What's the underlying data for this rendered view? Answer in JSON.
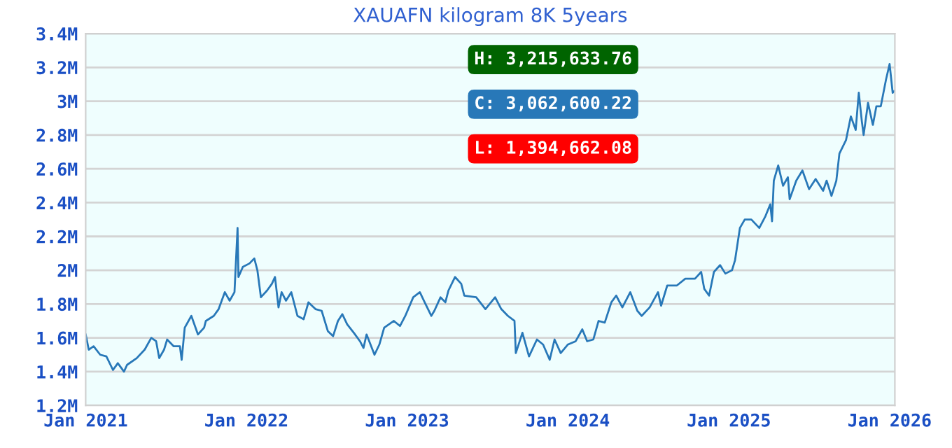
{
  "chart_data": {
    "type": "line",
    "title": "XAUAFN kilogram 8K 5years",
    "annotations": [
      "H: 3,215,633.76",
      "C: 3,062,600.22",
      "L: 1,394,662.08"
    ],
    "series": [
      {
        "color": "#2878b8",
        "x": [
          "2021-01-01",
          "2021-01-08",
          "2021-01-19",
          "2021-02-03",
          "2021-02-17",
          "2021-03-04",
          "2021-03-15",
          "2021-03-29",
          "2021-04-05",
          "2021-04-27",
          "2021-05-15",
          "2021-05-30",
          "2021-06-10",
          "2021-06-17",
          "2021-06-28",
          "2021-07-05",
          "2021-07-20",
          "2021-08-03",
          "2021-08-07",
          "2021-08-14",
          "2021-08-29",
          "2021-09-13",
          "2021-09-27",
          "2021-10-01",
          "2021-10-19",
          "2021-10-30",
          "2021-11-13",
          "2021-11-24",
          "2021-12-05",
          "2021-12-12",
          "2021-12-14",
          "2021-12-24",
          "2022-01-08",
          "2022-01-19",
          "2022-01-26",
          "2022-02-03",
          "2022-02-17",
          "2022-02-28",
          "2022-03-07",
          "2022-03-15",
          "2022-03-22",
          "2022-04-01",
          "2022-04-13",
          "2022-04-27",
          "2022-05-11",
          "2022-05-22",
          "2022-06-07",
          "2022-06-21",
          "2022-07-05",
          "2022-07-17",
          "2022-07-28",
          "2022-08-07",
          "2022-08-18",
          "2022-09-02",
          "2022-09-16",
          "2022-09-24",
          "2022-10-01",
          "2022-10-19",
          "2022-10-30",
          "2022-11-10",
          "2022-12-02",
          "2022-12-16",
          "2022-12-28",
          "2023-01-15",
          "2023-01-30",
          "2023-02-10",
          "2023-02-25",
          "2023-03-04",
          "2023-03-18",
          "2023-03-29",
          "2023-04-05",
          "2023-04-20",
          "2023-05-04",
          "2023-05-11",
          "2023-06-07",
          "2023-06-28",
          "2023-07-20",
          "2023-08-03",
          "2023-08-18",
          "2023-09-02",
          "2023-09-05",
          "2023-09-20",
          "2023-10-05",
          "2023-10-23",
          "2023-11-06",
          "2023-11-21",
          "2023-12-02",
          "2023-12-16",
          "2024-01-01",
          "2024-01-19",
          "2024-02-03",
          "2024-02-14",
          "2024-02-28",
          "2024-03-11",
          "2024-03-25",
          "2024-04-09",
          "2024-04-20",
          "2024-05-04",
          "2024-05-22",
          "2024-06-07",
          "2024-06-17",
          "2024-07-05",
          "2024-07-24",
          "2024-07-31",
          "2024-08-14",
          "2024-09-05",
          "2024-09-24",
          "2024-10-16",
          "2024-10-30",
          "2024-11-06",
          "2024-11-17",
          "2024-11-28",
          "2024-12-12",
          "2024-12-24",
          "2025-01-08",
          "2025-01-15",
          "2025-01-26",
          "2025-02-06",
          "2025-02-21",
          "2025-03-11",
          "2025-03-25",
          "2025-04-05",
          "2025-04-09",
          "2025-04-13",
          "2025-04-23",
          "2025-05-04",
          "2025-05-15",
          "2025-05-19",
          "2025-06-03",
          "2025-06-17",
          "2025-07-02",
          "2025-07-17",
          "2025-08-03",
          "2025-08-11",
          "2025-08-22",
          "2025-09-02",
          "2025-09-09",
          "2025-09-24",
          "2025-10-05",
          "2025-10-16",
          "2025-10-23",
          "2025-10-30",
          "2025-11-03",
          "2025-11-13",
          "2025-11-24",
          "2025-12-02",
          "2025-12-12",
          "2025-12-24",
          "2026-01-01",
          "2026-01-08",
          "2026-01-12"
        ],
        "values": [
          1.62,
          1.53,
          1.55,
          1.5,
          1.49,
          1.41,
          1.45,
          1.4,
          1.44,
          1.48,
          1.53,
          1.6,
          1.58,
          1.48,
          1.53,
          1.59,
          1.55,
          1.55,
          1.47,
          1.66,
          1.73,
          1.62,
          1.66,
          1.7,
          1.73,
          1.77,
          1.87,
          1.82,
          1.87,
          2.25,
          1.96,
          2.02,
          2.04,
          2.07,
          2.0,
          1.84,
          1.88,
          1.92,
          1.96,
          1.78,
          1.87,
          1.82,
          1.87,
          1.73,
          1.71,
          1.81,
          1.77,
          1.76,
          1.64,
          1.61,
          1.7,
          1.74,
          1.68,
          1.63,
          1.58,
          1.54,
          1.62,
          1.5,
          1.56,
          1.66,
          1.7,
          1.67,
          1.73,
          1.84,
          1.87,
          1.81,
          1.73,
          1.76,
          1.84,
          1.81,
          1.88,
          1.96,
          1.92,
          1.85,
          1.84,
          1.77,
          1.84,
          1.77,
          1.73,
          1.7,
          1.51,
          1.63,
          1.49,
          1.59,
          1.56,
          1.47,
          1.59,
          1.51,
          1.56,
          1.58,
          1.65,
          1.58,
          1.59,
          1.7,
          1.69,
          1.81,
          1.85,
          1.78,
          1.87,
          1.76,
          1.73,
          1.78,
          1.87,
          1.79,
          1.91,
          1.91,
          1.95,
          1.95,
          1.99,
          1.89,
          1.85,
          1.99,
          2.03,
          1.98,
          2.0,
          2.06,
          2.25,
          2.3,
          2.3,
          2.25,
          2.32,
          2.39,
          2.29,
          2.53,
          2.62,
          2.5,
          2.55,
          2.42,
          2.53,
          2.59,
          2.48,
          2.54,
          2.47,
          2.53,
          2.44,
          2.53,
          2.69,
          2.77,
          2.91,
          2.83,
          3.05,
          2.88,
          2.8,
          2.99,
          2.86,
          2.97,
          2.97,
          3.13,
          3.22,
          3.05,
          3.06
        ]
      }
    ],
    "xlim": [
      "2021-01-01",
      "2026-01-13"
    ],
    "xticks": [
      {
        "value": "2021-01-01",
        "label": "Jan 2021"
      },
      {
        "value": "2022-01-01",
        "label": "Jan 2022"
      },
      {
        "value": "2023-01-01",
        "label": "Jan 2023"
      },
      {
        "value": "2024-01-01",
        "label": "Jan 2024"
      },
      {
        "value": "2025-01-01",
        "label": "Jan 2025"
      },
      {
        "value": "2026-01-01",
        "label": "Jan 2026"
      }
    ],
    "ylim": [
      1.2,
      3.4
    ],
    "yticks": [
      {
        "value": 1.2,
        "label": "1.2M"
      },
      {
        "value": 1.4,
        "label": "1.4M"
      },
      {
        "value": 1.6,
        "label": "1.6M"
      },
      {
        "value": 1.8,
        "label": "1.8M"
      },
      {
        "value": 2,
        "label": "2M"
      },
      {
        "value": 2.2,
        "label": "2.2M"
      },
      {
        "value": 2.4,
        "label": "2.4M"
      },
      {
        "value": 2.6,
        "label": "2.6M"
      },
      {
        "value": 2.8,
        "label": "2.8M"
      },
      {
        "value": 3,
        "label": "3M"
      },
      {
        "value": 3.2,
        "label": "3.2M"
      },
      {
        "value": 3.4,
        "label": "3.4M"
      }
    ],
    "grid": "y"
  }
}
